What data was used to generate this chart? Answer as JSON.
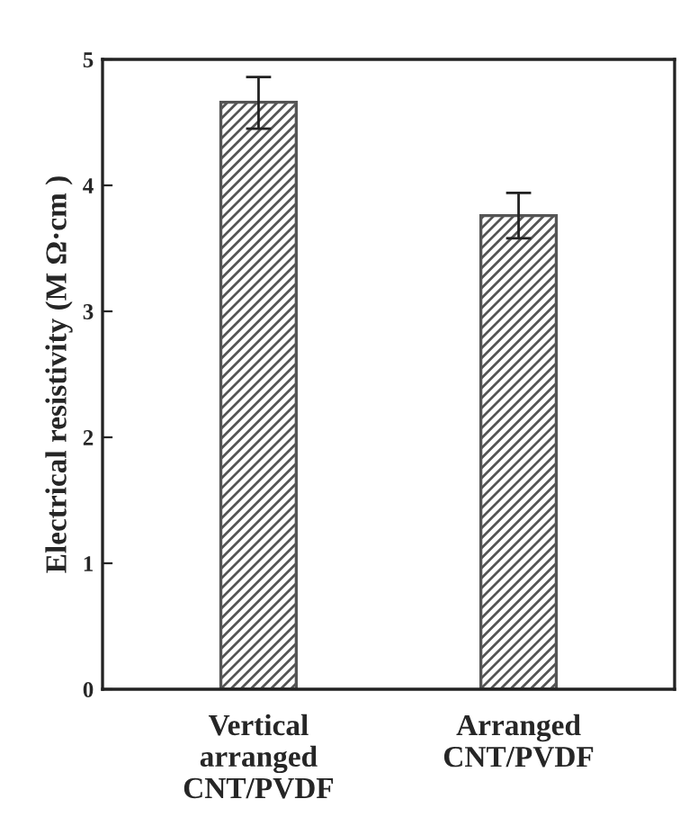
{
  "chart_data": {
    "type": "bar",
    "categories": [
      "Vertical\narranged\nCNT/PVDF",
      "Arranged\nCNT/PVDF"
    ],
    "values": [
      4.66,
      3.76
    ],
    "errors": [
      [
        4.45,
        4.86
      ],
      [
        3.58,
        3.94
      ]
    ],
    "color": "#555555",
    "ylabel": "Electrical resistivity (M Ω·cm )",
    "ylim": [
      0,
      5
    ],
    "yticks": [
      0,
      1,
      2,
      3,
      4,
      5
    ],
    "grid": false
  }
}
